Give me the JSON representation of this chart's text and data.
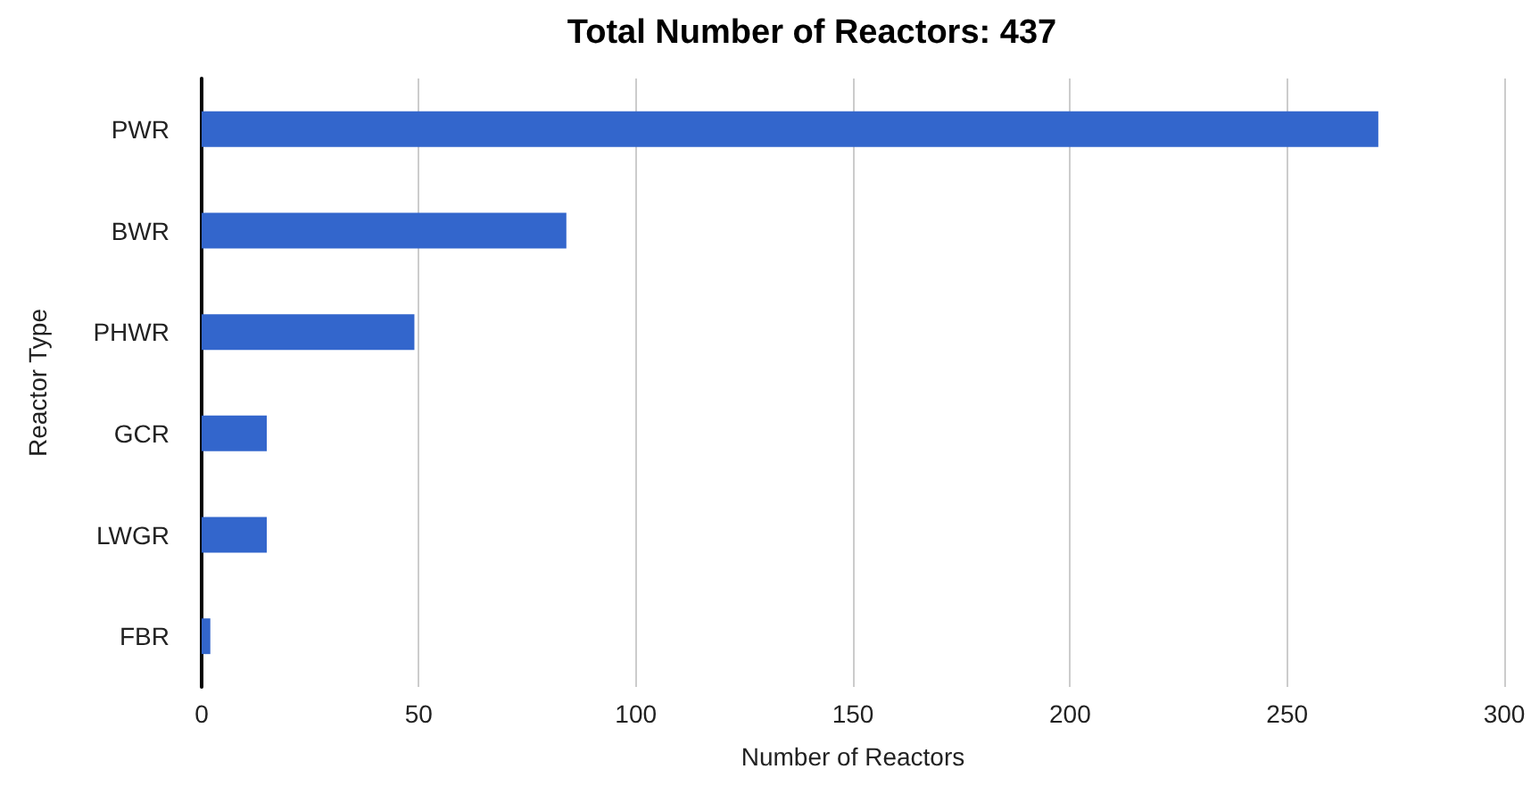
{
  "chart_data": {
    "type": "bar",
    "orientation": "horizontal",
    "title": "Total Number of Reactors: 437",
    "xlabel": "Number of Reactors",
    "ylabel": "Reactor Type",
    "categories": [
      "PWR",
      "BWR",
      "PHWR",
      "GCR",
      "LWGR",
      "FBR"
    ],
    "values": [
      271,
      84,
      49,
      15,
      15,
      2
    ],
    "color": "#3366cc",
    "xlim": [
      0,
      300
    ],
    "xticks": [
      0,
      50,
      100,
      150,
      200,
      250,
      300
    ],
    "grid": "x"
  }
}
